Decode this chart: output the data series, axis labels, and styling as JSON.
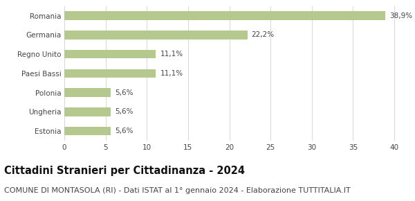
{
  "categories": [
    "Estonia",
    "Ungheria",
    "Polonia",
    "Paesi Bassi",
    "Regno Unito",
    "Germania",
    "Romania"
  ],
  "values": [
    5.6,
    5.6,
    5.6,
    11.1,
    11.1,
    22.2,
    38.9
  ],
  "labels": [
    "5,6%",
    "5,6%",
    "5,6%",
    "11,1%",
    "11,1%",
    "22,2%",
    "38,9%"
  ],
  "bar_color": "#b5c98e",
  "background_color": "#ffffff",
  "grid_color": "#d0d0d0",
  "title": "Cittadini Stranieri per Cittadinanza - 2024",
  "subtitle": "COMUNE DI MONTASOLA (RI) - Dati ISTAT al 1° gennaio 2024 - Elaborazione TUTTITALIA.IT",
  "xlim": [
    0,
    41
  ],
  "xticks": [
    0,
    5,
    10,
    15,
    20,
    25,
    30,
    35,
    40
  ],
  "title_fontsize": 10.5,
  "subtitle_fontsize": 8,
  "label_fontsize": 7.5,
  "tick_fontsize": 7.5,
  "bar_height": 0.45
}
